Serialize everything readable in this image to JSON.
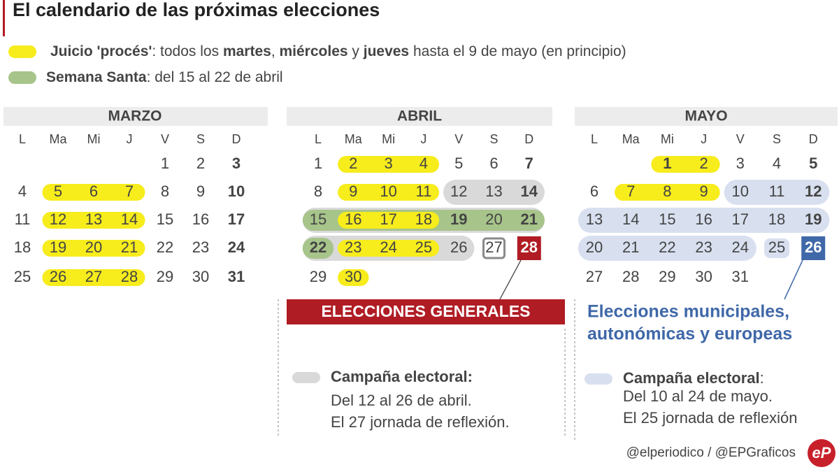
{
  "title": "El calendario de las próximas elecciones",
  "legend": [
    {
      "color": "#f7ec1c",
      "parts": [
        {
          "text": "Juicio 'procés'",
          "bold": true
        },
        {
          "text": ": todos los ",
          "bold": false
        },
        {
          "text": "martes",
          "bold": true
        },
        {
          "text": ", ",
          "bold": false
        },
        {
          "text": "miércoles",
          "bold": true
        },
        {
          "text": " y ",
          "bold": false
        },
        {
          "text": "jueves",
          "bold": true
        },
        {
          "text": " hasta el 9 de mayo (en principio)",
          "bold": false
        }
      ]
    },
    {
      "color": "#a7c48a",
      "parts": [
        {
          "text": "Semana Santa",
          "bold": true
        },
        {
          "text": ": del 15 al 22 de abril",
          "bold": false
        }
      ]
    }
  ],
  "weekdays": [
    "L",
    "Ma",
    "Mi",
    "J",
    "V",
    "S",
    "D"
  ],
  "months": [
    {
      "name": "MARZO",
      "weeks": [
        [
          null,
          null,
          null,
          null,
          1,
          2,
          3
        ],
        [
          4,
          5,
          6,
          7,
          8,
          9,
          10
        ],
        [
          11,
          12,
          13,
          14,
          15,
          16,
          17
        ],
        [
          18,
          19,
          20,
          21,
          22,
          23,
          24
        ],
        [
          25,
          26,
          27,
          28,
          29,
          30,
          31
        ]
      ],
      "bold": [
        3,
        10,
        17,
        24,
        31
      ],
      "juicio": [
        5,
        6,
        7,
        12,
        13,
        14,
        19,
        20,
        21,
        26,
        27,
        28
      ]
    },
    {
      "name": "ABRIL",
      "weeks": [
        [
          1,
          2,
          3,
          4,
          5,
          6,
          7
        ],
        [
          8,
          9,
          10,
          11,
          12,
          13,
          14
        ],
        [
          15,
          16,
          17,
          18,
          19,
          20,
          21
        ],
        [
          22,
          23,
          24,
          25,
          26,
          27,
          28
        ],
        [
          29,
          30,
          null,
          null,
          null,
          null,
          null
        ]
      ],
      "bold": [
        7,
        14,
        19,
        21,
        22,
        28
      ],
      "juicio": [
        2,
        3,
        4,
        9,
        10,
        11,
        16,
        17,
        18,
        23,
        24,
        25,
        30
      ],
      "semana_santa": [
        15,
        16,
        17,
        18,
        19,
        20,
        21,
        22
      ],
      "campaign": [
        12,
        13,
        14,
        15,
        16,
        17,
        18,
        19,
        20,
        21,
        22,
        23,
        24,
        25,
        26
      ],
      "campaign_color": "#d9d9d9",
      "reflection": 27,
      "reflection_style": "outline",
      "election": 28,
      "election_color": "#b01c24"
    },
    {
      "name": "MAYO",
      "weeks": [
        [
          null,
          null,
          1,
          2,
          3,
          4,
          5
        ],
        [
          6,
          7,
          8,
          9,
          10,
          11,
          12
        ],
        [
          13,
          14,
          15,
          16,
          17,
          18,
          19
        ],
        [
          20,
          21,
          22,
          23,
          24,
          25,
          26
        ],
        [
          27,
          28,
          29,
          30,
          31,
          null,
          null
        ]
      ],
      "bold": [
        1,
        5,
        12,
        19,
        26
      ],
      "juicio": [
        1,
        2,
        7,
        8,
        9
      ],
      "campaign": [
        10,
        11,
        12,
        13,
        14,
        15,
        16,
        17,
        18,
        19,
        20,
        21,
        22,
        23,
        24
      ],
      "campaign_color": "#d8e0f0",
      "reflection": 25,
      "reflection_style": "fill",
      "election": 26,
      "election_color": "#3f68a8"
    }
  ],
  "elections": [
    {
      "label_lines": [
        "ELECCIONES GENERALES"
      ],
      "color": "#b01c24"
    },
    {
      "label_lines": [
        "Elecciones municipales,",
        "autonómicas y europeas"
      ],
      "color": "#3f68a8"
    }
  ],
  "notes": [
    {
      "color": "#d9d9d9",
      "parts": [
        {
          "text": "Campaña electoral:",
          "bold": true
        }
      ],
      "lines": [
        "Del 12 al 26 de abril.",
        "El 27 jornada de reflexión."
      ]
    },
    {
      "color": "#d8e0f0",
      "parts": [
        {
          "text": "Campaña electoral",
          "bold": true
        },
        {
          "text": ":",
          "bold": false
        }
      ],
      "lines": [
        "Del 10 al 24 de mayo.",
        "El 25 jornada de reflexión"
      ]
    }
  ],
  "credit": "@elperiodico / @EPGraficos",
  "logo": "eP"
}
